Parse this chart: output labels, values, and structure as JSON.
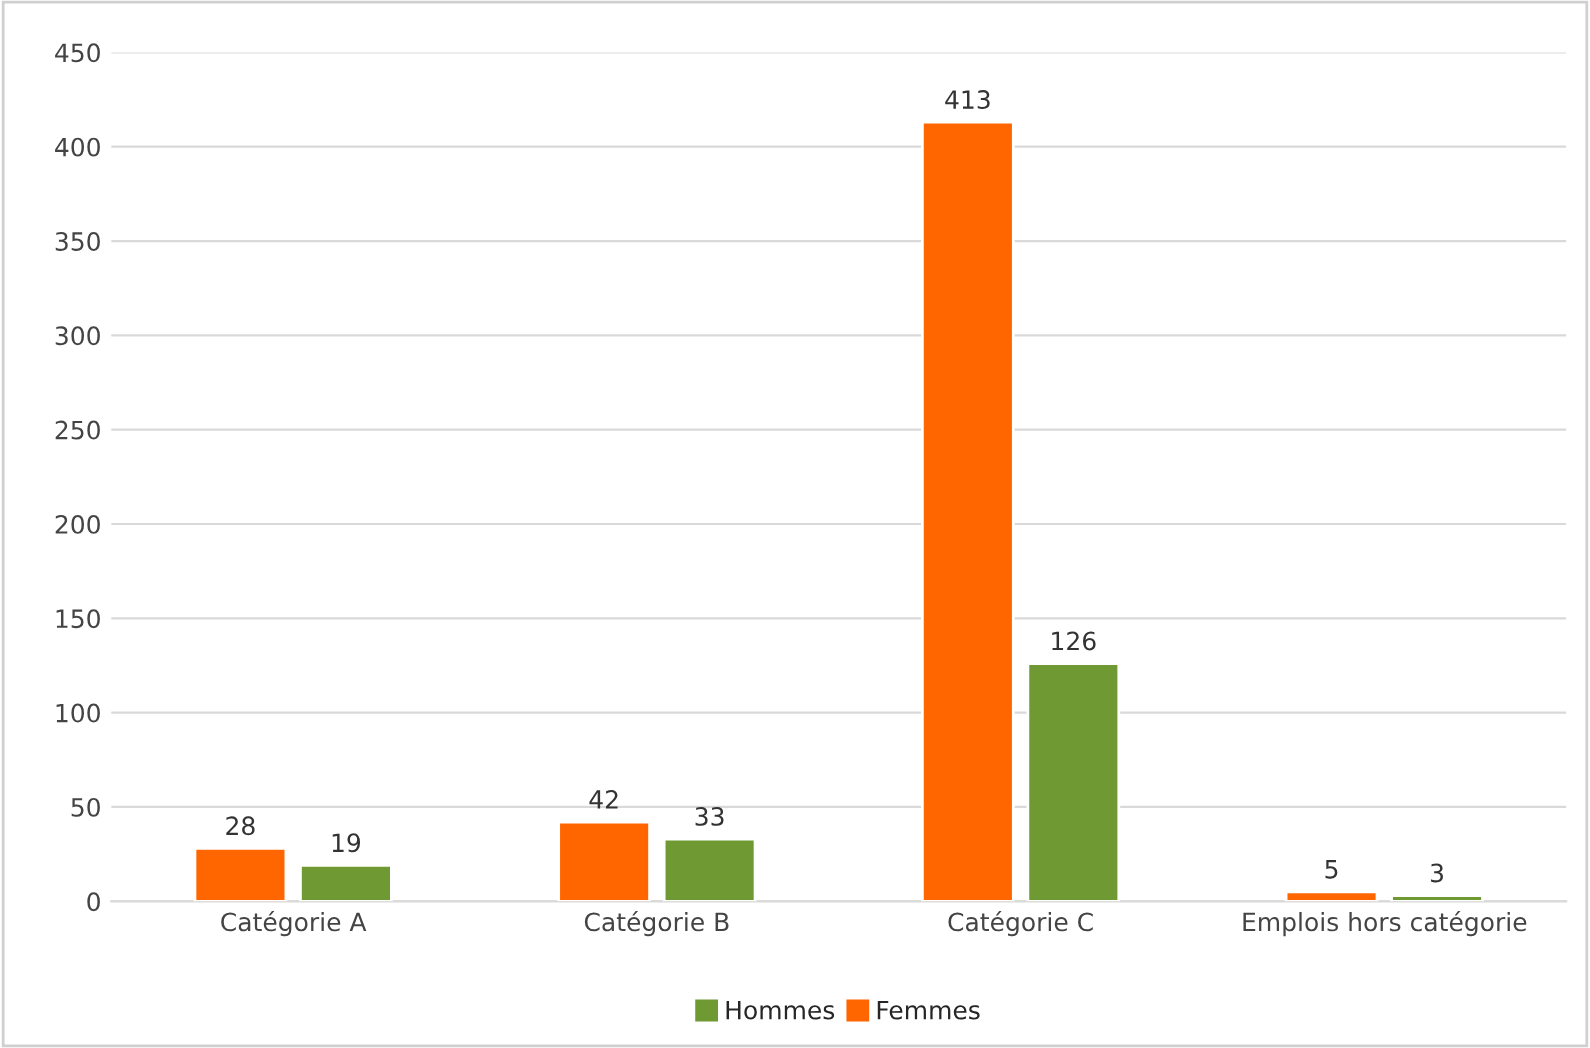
{
  "chart_data": {
    "type": "bar",
    "categories": [
      "Catégorie A",
      "Catégorie B",
      "Catégorie C",
      "Emplois hors catégorie"
    ],
    "series": [
      {
        "name": "Femmes",
        "color": "#ff6600",
        "values": [
          28,
          42,
          413,
          5
        ]
      },
      {
        "name": "Hommes",
        "color": "#6f9a33",
        "values": [
          19,
          33,
          126,
          3
        ]
      }
    ],
    "ylim": [
      0,
      450
    ],
    "yticks": [
      0,
      50,
      100,
      150,
      200,
      250,
      300,
      350,
      400,
      450
    ],
    "grid": "y",
    "legend": "bottom",
    "data_labels": true
  }
}
